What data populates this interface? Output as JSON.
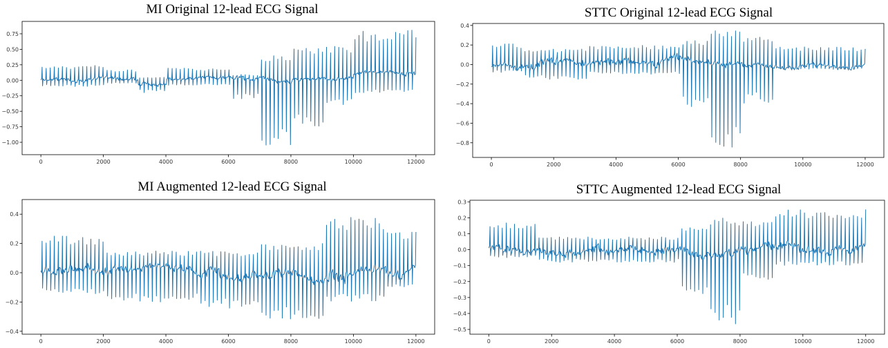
{
  "chart_data": [
    {
      "id": "mi-original",
      "type": "line",
      "title": "MI Original 12-lead ECG Signal",
      "xlabel": "",
      "ylabel": "",
      "xlim": [
        -600,
        12600
      ],
      "ylim": [
        -1.2,
        0.95
      ],
      "xticks": [
        0,
        2000,
        4000,
        6000,
        8000,
        10000,
        12000
      ],
      "xtick_labels": [
        "0",
        "2000",
        "4000",
        "6000",
        "8000",
        "10000",
        "12000"
      ],
      "yticks": [
        0.75,
        0.5,
        0.25,
        0.0,
        -0.25,
        -0.5,
        -0.75,
        -1.0
      ],
      "ytick_labels": [
        "0.75",
        "0.50",
        "0.25",
        "0.00",
        "−0.25",
        "−0.50",
        "−0.75",
        "−1.00"
      ],
      "grid": false,
      "color": "#1f77b4",
      "segments": [
        {
          "x0": 0,
          "x1": 2000,
          "baseline": 0.0,
          "up": 0.24,
          "down": -0.1,
          "noise": 0.05
        },
        {
          "x0": 2000,
          "x1": 3000,
          "baseline": 0.03,
          "up": 0.18,
          "down": -0.05,
          "noise": 0.05
        },
        {
          "x0": 3000,
          "x1": 4000,
          "baseline": -0.05,
          "up": 0.05,
          "down": -0.2,
          "noise": 0.04
        },
        {
          "x0": 4000,
          "x1": 6000,
          "baseline": 0.03,
          "up": 0.2,
          "down": -0.08,
          "noise": 0.04
        },
        {
          "x0": 6000,
          "x1": 7000,
          "baseline": 0.0,
          "up": 0.1,
          "down": -0.3,
          "noise": 0.05
        },
        {
          "x0": 7000,
          "x1": 8000,
          "baseline": 0.0,
          "up": 0.4,
          "down": -1.05,
          "noise": 0.05
        },
        {
          "x0": 8000,
          "x1": 9000,
          "baseline": 0.05,
          "up": 0.55,
          "down": -0.75,
          "noise": 0.05
        },
        {
          "x0": 9000,
          "x1": 10000,
          "baseline": 0.05,
          "up": 0.55,
          "down": -0.4,
          "noise": 0.05
        },
        {
          "x0": 10000,
          "x1": 12000,
          "baseline": 0.1,
          "up": 0.82,
          "down": -0.2,
          "noise": 0.06
        }
      ]
    },
    {
      "id": "sttc-original",
      "type": "line",
      "title": "STTC Original 12-lead ECG Signal",
      "xlabel": "",
      "ylabel": "",
      "xlim": [
        -600,
        12600
      ],
      "ylim": [
        -0.95,
        0.42
      ],
      "xticks": [
        0,
        2000,
        4000,
        6000,
        8000,
        10000,
        12000
      ],
      "xtick_labels": [
        "0",
        "2000",
        "4000",
        "6000",
        "8000",
        "10000",
        "12000"
      ],
      "yticks": [
        0.4,
        0.2,
        0.0,
        -0.2,
        -0.4,
        -0.6,
        -0.8
      ],
      "ytick_labels": [
        "0.4",
        "0.2",
        "0.0",
        "−0.2",
        "−0.4",
        "−0.6",
        "−0.8"
      ],
      "grid": false,
      "color": "#1f77b4",
      "segments": [
        {
          "x0": 0,
          "x1": 1000,
          "baseline": 0.0,
          "up": 0.22,
          "down": -0.08,
          "noise": 0.05
        },
        {
          "x0": 1000,
          "x1": 3000,
          "baseline": 0.02,
          "up": 0.16,
          "down": -0.15,
          "noise": 0.07
        },
        {
          "x0": 3000,
          "x1": 6000,
          "baseline": 0.02,
          "up": 0.2,
          "down": -0.1,
          "noise": 0.06
        },
        {
          "x0": 6000,
          "x1": 7000,
          "baseline": 0.0,
          "up": 0.25,
          "down": -0.45,
          "noise": 0.05
        },
        {
          "x0": 7000,
          "x1": 8000,
          "baseline": 0.0,
          "up": 0.35,
          "down": -0.85,
          "noise": 0.05
        },
        {
          "x0": 8000,
          "x1": 9000,
          "baseline": 0.0,
          "up": 0.3,
          "down": -0.4,
          "noise": 0.05
        },
        {
          "x0": 9000,
          "x1": 12000,
          "baseline": 0.0,
          "up": 0.18,
          "down": -0.05,
          "noise": 0.04
        }
      ]
    },
    {
      "id": "mi-augmented",
      "type": "line",
      "title": "MI Augmented 12-lead ECG Signal",
      "xlabel": "",
      "ylabel": "",
      "xlim": [
        -600,
        12600
      ],
      "ylim": [
        -0.42,
        0.5
      ],
      "xticks": [
        0,
        2000,
        4000,
        6000,
        8000,
        10000,
        12000
      ],
      "xtick_labels": [
        "0",
        "2000",
        "4000",
        "6000",
        "8000",
        "10000",
        "12000"
      ],
      "yticks": [
        0.4,
        0.2,
        0.0,
        -0.2,
        -0.4
      ],
      "ytick_labels": [
        "0.4",
        "0.2",
        "0.0",
        "−0.2",
        "−0.4"
      ],
      "grid": false,
      "color": "#1f77b4",
      "segments": [
        {
          "x0": 0,
          "x1": 2000,
          "baseline": 0.02,
          "up": 0.25,
          "down": -0.15,
          "noise": 0.05
        },
        {
          "x0": 2000,
          "x1": 5000,
          "baseline": 0.0,
          "up": 0.15,
          "down": -0.2,
          "noise": 0.05
        },
        {
          "x0": 5000,
          "x1": 7000,
          "baseline": 0.0,
          "up": 0.15,
          "down": -0.25,
          "noise": 0.05
        },
        {
          "x0": 7000,
          "x1": 9000,
          "baseline": 0.0,
          "up": 0.2,
          "down": -0.33,
          "noise": 0.05
        },
        {
          "x0": 9000,
          "x1": 11000,
          "baseline": 0.03,
          "up": 0.38,
          "down": -0.2,
          "noise": 0.06
        },
        {
          "x0": 11000,
          "x1": 12000,
          "baseline": 0.0,
          "up": 0.3,
          "down": -0.1,
          "noise": 0.05
        }
      ]
    },
    {
      "id": "sttc-augmented",
      "type": "line",
      "title": "STTC Augmented 12-lead ECG Signal",
      "xlabel": "",
      "ylabel": "",
      "xlim": [
        -600,
        12600
      ],
      "ylim": [
        -0.53,
        0.31
      ],
      "xticks": [
        0,
        2000,
        4000,
        6000,
        8000,
        10000,
        12000
      ],
      "xtick_labels": [
        "0",
        "2000",
        "4000",
        "6000",
        "8000",
        "10000",
        "12000"
      ],
      "yticks": [
        0.3,
        0.2,
        0.1,
        0.0,
        -0.1,
        -0.2,
        -0.3,
        -0.4,
        -0.5
      ],
      "ytick_labels": [
        "0.3",
        "0.2",
        "0.1",
        "0.0",
        "−0.1",
        "−0.2",
        "−0.3",
        "−0.4",
        "−0.5"
      ],
      "grid": false,
      "color": "#1f77b4",
      "segments": [
        {
          "x0": 0,
          "x1": 1500,
          "baseline": 0.0,
          "up": 0.17,
          "down": -0.05,
          "noise": 0.04
        },
        {
          "x0": 1500,
          "x1": 6000,
          "baseline": 0.0,
          "up": 0.08,
          "down": -0.08,
          "noise": 0.04
        },
        {
          "x0": 6000,
          "x1": 7000,
          "baseline": 0.0,
          "up": 0.15,
          "down": -0.28,
          "noise": 0.04
        },
        {
          "x0": 7000,
          "x1": 8000,
          "baseline": 0.0,
          "up": 0.2,
          "down": -0.48,
          "noise": 0.04
        },
        {
          "x0": 8000,
          "x1": 9000,
          "baseline": 0.0,
          "up": 0.18,
          "down": -0.2,
          "noise": 0.04
        },
        {
          "x0": 9000,
          "x1": 12000,
          "baseline": 0.0,
          "up": 0.26,
          "down": -0.1,
          "noise": 0.04
        }
      ]
    }
  ]
}
